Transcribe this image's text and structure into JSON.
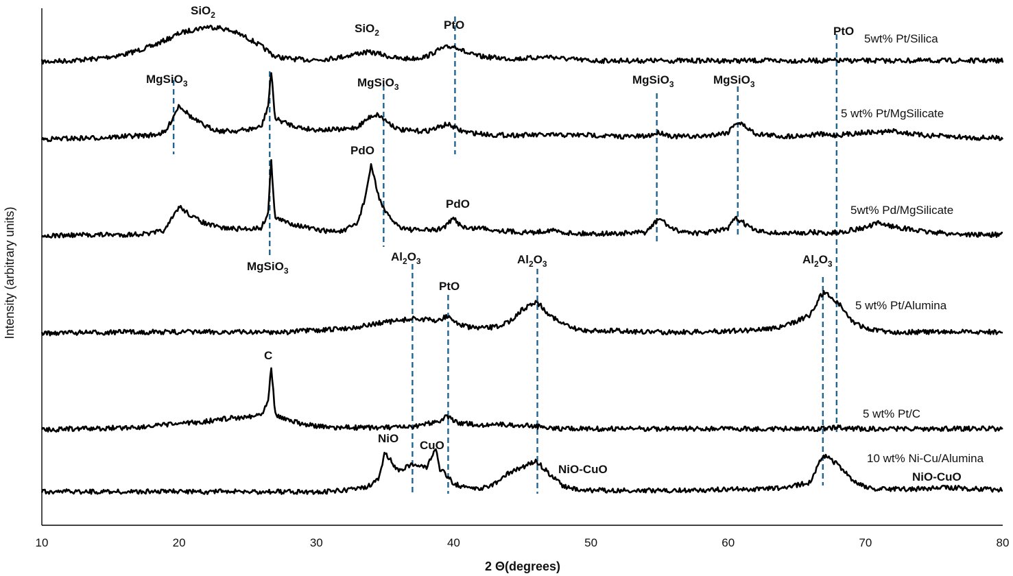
{
  "chart_data": {
    "type": "line",
    "xlabel": "2 Θ(degrees)",
    "ylabel": "Intensity (arbitrary units)",
    "xlim": [
      10,
      80
    ],
    "xticks": [
      "10",
      "20",
      "30",
      "40",
      "50",
      "60",
      "70",
      "80"
    ],
    "x": [
      10,
      12,
      14,
      16,
      18,
      19,
      19.5,
      20,
      21,
      22,
      23,
      24,
      25,
      26,
      26.5,
      26.7,
      27,
      28,
      29,
      30,
      31,
      32,
      33,
      33.5,
      34,
      34.5,
      35,
      36,
      37,
      38,
      38.7,
      39,
      39.5,
      40,
      40.3,
      41,
      42,
      43,
      44,
      45,
      46,
      47,
      48,
      49,
      50,
      52,
      54,
      55,
      56,
      58,
      60,
      60.5,
      61,
      62,
      64,
      66,
      66.7,
      67,
      68,
      69,
      70,
      71,
      72,
      74,
      76,
      78,
      80
    ],
    "series": [
      {
        "name": "5wt% Pt/Silica",
        "values": [
          0,
          2,
          6,
          14,
          30,
          42,
          48,
          55,
          62,
          68,
          66,
          58,
          46,
          30,
          20,
          16,
          10,
          6,
          4,
          4,
          6,
          10,
          16,
          18,
          18,
          16,
          12,
          6,
          6,
          10,
          20,
          24,
          28,
          30,
          28,
          16,
          10,
          8,
          6,
          6,
          8,
          10,
          6,
          4,
          2,
          2,
          2,
          2,
          2,
          2,
          2,
          2,
          2,
          2,
          2,
          2,
          2,
          2,
          2,
          2,
          2,
          2,
          2,
          2,
          2,
          2,
          2
        ]
      },
      {
        "name": "5 wt% Pt/MgSilicate",
        "values": [
          0,
          1,
          2,
          4,
          6,
          10,
          30,
          50,
          30,
          18,
          12,
          12,
          14,
          18,
          50,
          100,
          30,
          22,
          16,
          14,
          14,
          14,
          18,
          26,
          34,
          36,
          28,
          14,
          12,
          12,
          16,
          18,
          22,
          18,
          14,
          10,
          8,
          6,
          6,
          6,
          6,
          6,
          6,
          6,
          6,
          4,
          4,
          10,
          4,
          4,
          10,
          24,
          22,
          8,
          4,
          6,
          8,
          6,
          6,
          8,
          10,
          10,
          12,
          6,
          4,
          2,
          2
        ]
      },
      {
        "name": "5wt% Pd/MgSilicate",
        "values": [
          0,
          1,
          2,
          2,
          4,
          10,
          30,
          50,
          32,
          20,
          14,
          12,
          12,
          14,
          40,
          130,
          30,
          22,
          16,
          10,
          8,
          8,
          22,
          60,
          120,
          70,
          40,
          16,
          10,
          10,
          10,
          12,
          18,
          30,
          22,
          12,
          14,
          10,
          8,
          6,
          6,
          10,
          6,
          4,
          4,
          4,
          6,
          30,
          10,
          4,
          12,
          30,
          24,
          8,
          4,
          6,
          6,
          4,
          6,
          10,
          14,
          22,
          16,
          8,
          4,
          2,
          2
        ]
      },
      {
        "name": "5 wt% Pt/Alumina",
        "values": [
          0,
          1,
          1,
          2,
          2,
          2,
          2,
          2,
          2,
          2,
          2,
          2,
          2,
          2,
          2,
          2,
          2,
          2,
          4,
          4,
          6,
          8,
          10,
          12,
          14,
          16,
          18,
          20,
          24,
          22,
          20,
          22,
          28,
          20,
          16,
          10,
          8,
          10,
          18,
          38,
          52,
          30,
          14,
          6,
          4,
          4,
          2,
          2,
          2,
          2,
          4,
          4,
          4,
          6,
          10,
          30,
          60,
          66,
          50,
          20,
          8,
          4,
          2,
          2,
          2,
          2,
          2
        ]
      },
      {
        "name": "5 wt% Pt/C",
        "values": [
          0,
          2,
          2,
          4,
          6,
          8,
          10,
          10,
          12,
          14,
          18,
          20,
          22,
          26,
          50,
          110,
          26,
          16,
          10,
          6,
          4,
          4,
          4,
          4,
          4,
          4,
          4,
          4,
          4,
          10,
          14,
          16,
          22,
          16,
          12,
          10,
          8,
          10,
          8,
          8,
          6,
          4,
          2,
          2,
          2,
          2,
          2,
          2,
          2,
          2,
          2,
          2,
          2,
          2,
          2,
          2,
          2,
          2,
          4,
          2,
          2,
          2,
          2,
          2,
          2,
          2,
          2
        ]
      },
      {
        "name": "10 wt% Ni-Cu/Alumina",
        "values": [
          0,
          0,
          0,
          0,
          0,
          0,
          0,
          0,
          0,
          0,
          0,
          0,
          0,
          0,
          0,
          0,
          0,
          0,
          0,
          0,
          0,
          2,
          4,
          6,
          10,
          18,
          58,
          30,
          42,
          36,
          62,
          34,
          24,
          12,
          10,
          6,
          4,
          12,
          28,
          36,
          46,
          26,
          8,
          4,
          2,
          2,
          2,
          2,
          2,
          2,
          4,
          4,
          4,
          4,
          6,
          14,
          48,
          54,
          40,
          18,
          6,
          4,
          4,
          4,
          6,
          4,
          2
        ]
      }
    ],
    "reference_lines": [
      {
        "x": 19.6,
        "label": "MgSiO3"
      },
      {
        "x": 26.6,
        "label": "MgSiO3"
      },
      {
        "x": 34.9,
        "label": "MgSiO3"
      },
      {
        "x": 40.1,
        "label": "PtO"
      },
      {
        "x": 54.8,
        "label": "MgSiO3"
      },
      {
        "x": 60.7,
        "label": "MgSiO3"
      },
      {
        "x": 67.9,
        "label": "PtO"
      },
      {
        "x": 37.0,
        "label": "Al2O3"
      },
      {
        "x": 39.6,
        "label": "PtO"
      },
      {
        "x": 46.1,
        "label": "Al2O3"
      },
      {
        "x": 66.9,
        "label": "Al2O3"
      }
    ],
    "peak_labels": [
      {
        "formula": "SiO",
        "sub": "2"
      },
      {
        "formula": "SiO",
        "sub": "2"
      },
      {
        "formula": "PtO",
        "sub": ""
      },
      {
        "formula": "PtO",
        "sub": ""
      },
      {
        "formula": "MgSiO",
        "sub": "3"
      },
      {
        "formula": "MgSiO",
        "sub": "3"
      },
      {
        "formula": "MgSiO",
        "sub": "3"
      },
      {
        "formula": "MgSiO",
        "sub": "3"
      },
      {
        "formula": "PdO",
        "sub": ""
      },
      {
        "formula": "PdO",
        "sub": ""
      },
      {
        "formula": "MgSiO",
        "sub": "3"
      },
      {
        "formula": "Al",
        "sub": "2",
        "formula2": "O",
        "sub2": "3"
      },
      {
        "formula": "Al",
        "sub": "2",
        "formula2": "O",
        "sub2": "3"
      },
      {
        "formula": "Al",
        "sub": "2",
        "formula2": "O",
        "sub2": "3"
      },
      {
        "formula": "PtO",
        "sub": ""
      },
      {
        "formula": "C",
        "sub": ""
      },
      {
        "formula": "NiO",
        "sub": ""
      },
      {
        "formula": "CuO",
        "sub": ""
      },
      {
        "formula": "NiO-CuO",
        "sub": ""
      },
      {
        "formula": "NiO-CuO",
        "sub": ""
      }
    ]
  }
}
